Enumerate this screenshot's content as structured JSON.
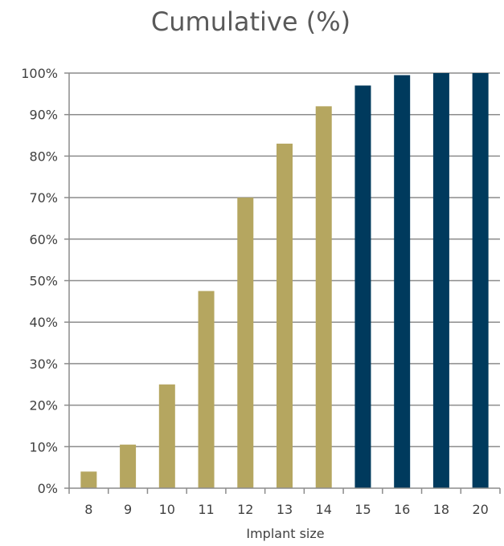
{
  "chart_data": {
    "type": "bar",
    "title": "Cumulative (%)",
    "xlabel": "Implant size",
    "ylabel": "",
    "categories": [
      "8",
      "9",
      "10",
      "11",
      "12",
      "13",
      "14",
      "15",
      "16",
      "18",
      "20"
    ],
    "values": [
      4,
      10.5,
      25,
      47.5,
      70,
      83,
      92,
      97,
      99.5,
      100,
      100
    ],
    "ylim": [
      0,
      100
    ],
    "y_ticks": [
      "0%",
      "10%",
      "20%",
      "30%",
      "40%",
      "50%",
      "60%",
      "70%",
      "80%",
      "90%",
      "100%"
    ],
    "grid": true,
    "legend": "none",
    "colors": {
      "gold": "#b5a660",
      "navy": "#003a5d",
      "grid": "#8c8c8c"
    },
    "bar_colors": [
      "gold",
      "gold",
      "gold",
      "gold",
      "gold",
      "gold",
      "gold",
      "navy",
      "navy",
      "navy",
      "navy"
    ]
  }
}
